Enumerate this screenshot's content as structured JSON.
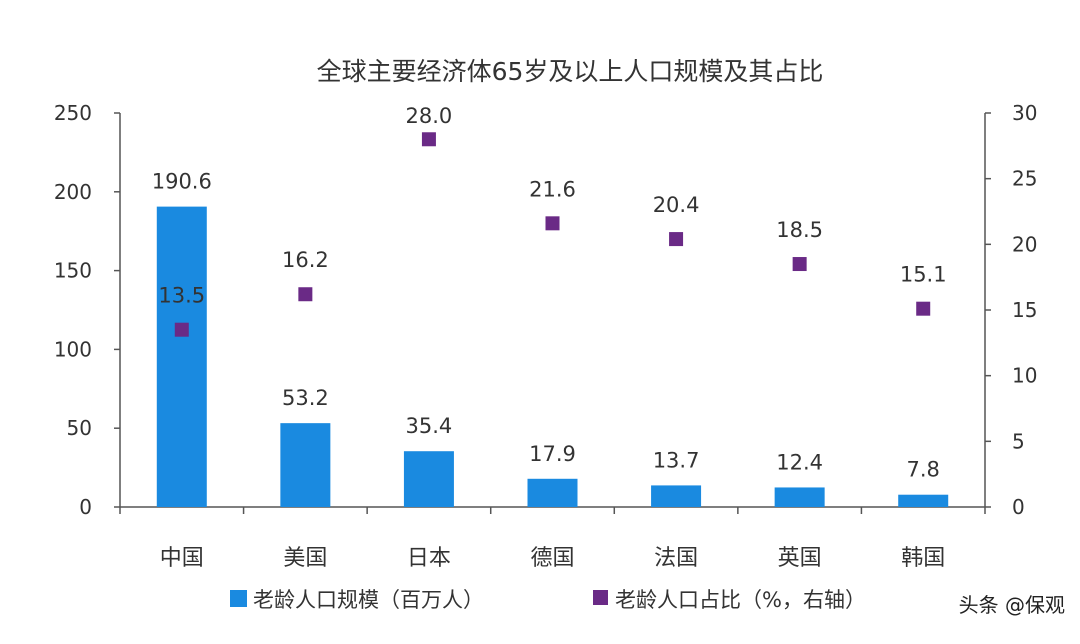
{
  "chart_data": {
    "type": "bar",
    "title": "全球主要经济体65岁及以上人口规模及其占比",
    "categories": [
      "中国",
      "美国",
      "日本",
      "德国",
      "法国",
      "英国",
      "韩国"
    ],
    "series": [
      {
        "name": "老龄人口规模（百万人）",
        "type": "bar",
        "axis": "left",
        "color": "#1a8ae0",
        "values": [
          190.6,
          53.2,
          35.4,
          17.9,
          13.7,
          12.4,
          7.8
        ]
      },
      {
        "name": "老龄人口占比（%，右轴）",
        "type": "scatter",
        "axis": "right",
        "color": "#6a2a86",
        "values": [
          13.5,
          16.2,
          28.0,
          21.6,
          20.4,
          18.5,
          15.1
        ]
      }
    ],
    "ylim_left": [
      0,
      250
    ],
    "yticks_left": [
      0,
      50,
      100,
      150,
      200,
      250
    ],
    "ylim_right": [
      0,
      30
    ],
    "yticks_right": [
      0,
      5,
      10,
      15,
      20,
      25,
      30
    ],
    "grid": false,
    "legend_position": "bottom"
  },
  "watermark": "头条 @保观"
}
